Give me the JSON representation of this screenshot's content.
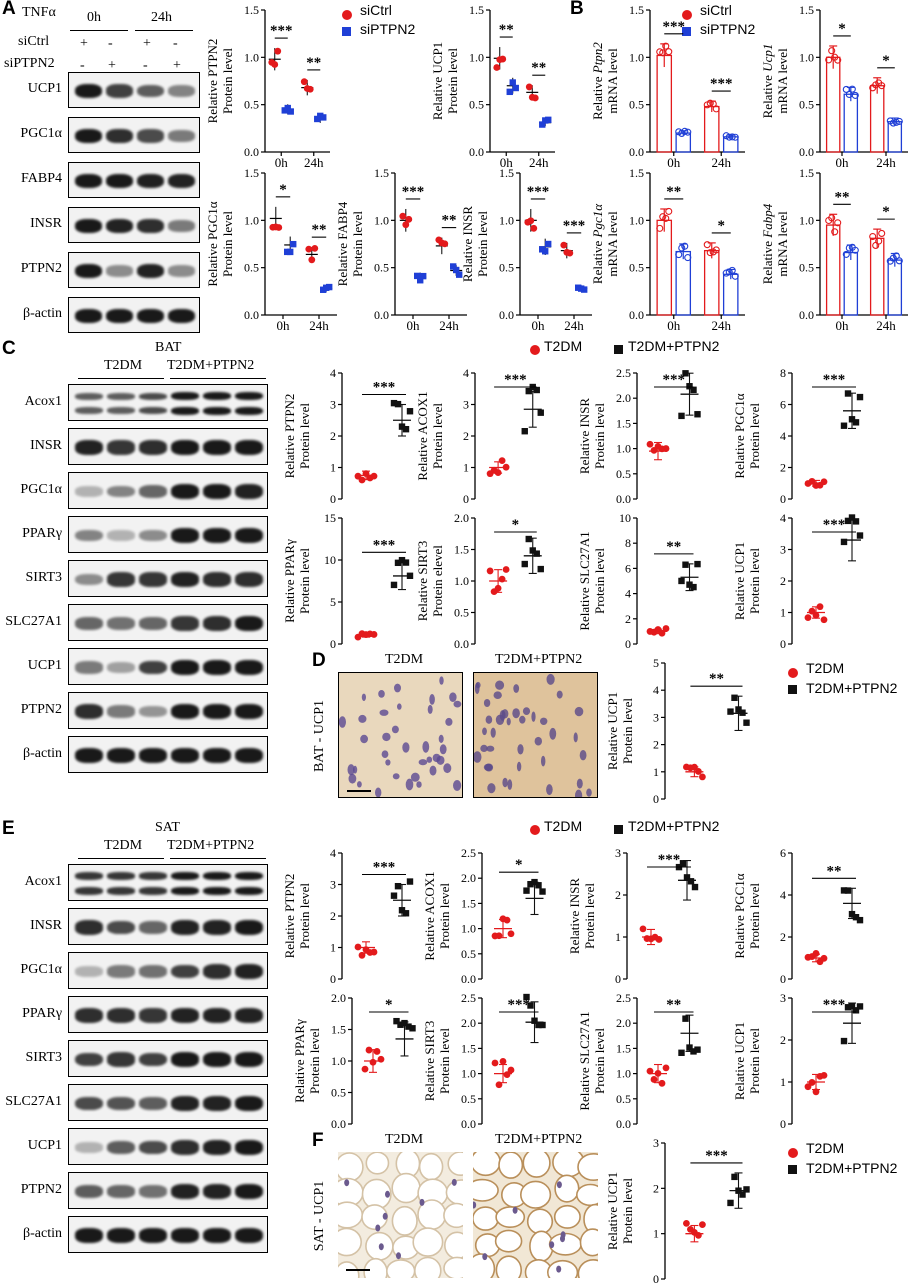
{
  "panels": {
    "A": {
      "letter": "A",
      "treatment_label": "TNFα",
      "time_labels": [
        "0h",
        "24h"
      ],
      "row_labels": [
        "siCtrl",
        "siPTPN2"
      ],
      "signs": {
        "siCtrl": [
          "+",
          "-",
          "+",
          "-"
        ],
        "siPTPN2": [
          "-",
          "+",
          "-",
          "+"
        ]
      },
      "blots": [
        "UCP1",
        "PGC1α",
        "FABP4",
        "INSR",
        "PTPN2",
        "β-actin"
      ],
      "legend": {
        "ctrl": "siCtrl",
        "treat": "siPTPN2"
      }
    },
    "B": {
      "letter": "B",
      "legend": {
        "ctrl": "siCtrl",
        "treat": "siPTPN2"
      }
    },
    "C": {
      "letter": "C",
      "tissue": "BAT",
      "groups": [
        "T2DM",
        "T2DM+PTPN2"
      ],
      "blots": [
        "Acox1",
        "INSR",
        "PGC1α",
        "PPARγ",
        "SIRT3",
        "SLC27A1",
        "UCP1",
        "PTPN2",
        "β-actin"
      ],
      "legend": {
        "ctrl": "T2DM",
        "treat": "T2DM+PTPN2"
      }
    },
    "D": {
      "letter": "D",
      "ylabel": "BAT - UCP1",
      "image_titles": [
        "T2DM",
        "T2DM+PTPN2"
      ],
      "legend": {
        "ctrl": "T2DM",
        "treat": "T2DM+PTPN2"
      }
    },
    "E": {
      "letter": "E",
      "tissue": "SAT",
      "groups": [
        "T2DM",
        "T2DM+PTPN2"
      ],
      "blots": [
        "Acox1",
        "INSR",
        "PGC1α",
        "PPARγ",
        "SIRT3",
        "SLC27A1",
        "UCP1",
        "PTPN2",
        "β-actin"
      ],
      "legend": {
        "ctrl": "T2DM",
        "treat": "T2DM+PTPN2"
      }
    },
    "F": {
      "letter": "F",
      "ylabel": "SAT - UCP1",
      "image_titles": [
        "T2DM",
        "T2DM+PTPN2"
      ],
      "legend": {
        "ctrl": "T2DM",
        "treat": "T2DM+PTPN2"
      }
    }
  },
  "colors": {
    "ctrl": "#e31a1c",
    "treat": "#1f3fd6",
    "black": "#111111"
  },
  "chart_data": [
    {
      "id": "A1",
      "type": "scatter",
      "ylabel": [
        "Relative PTPN2",
        "Protein level"
      ],
      "categories": [
        "0h",
        "24h"
      ],
      "ylim": [
        0,
        1.5
      ],
      "yticks": [
        0,
        0.5,
        1.0,
        1.5
      ],
      "tick_format": "1dp",
      "sig": [
        "***",
        "**"
      ],
      "series": [
        {
          "name": "siCtrl",
          "mean": [
            0.98,
            0.68
          ]
        },
        {
          "name": "siPTPN2",
          "mean": [
            0.45,
            0.35
          ]
        }
      ]
    },
    {
      "id": "A2",
      "type": "scatter",
      "ylabel": [
        "Relative UCP1",
        "Protein level"
      ],
      "categories": [
        "0h",
        "24h"
      ],
      "ylim": [
        0,
        1.5
      ],
      "yticks": [
        0,
        0.5,
        1.0,
        1.5
      ],
      "tick_format": "1dp",
      "sig": [
        "**",
        "**"
      ],
      "series": [
        {
          "name": "siCtrl",
          "mean": [
            0.99,
            0.63
          ]
        },
        {
          "name": "siPTPN2",
          "mean": [
            0.7,
            0.31
          ]
        }
      ]
    },
    {
      "id": "B1",
      "type": "bar",
      "ylabel": [
        "Relative Ptpn2",
        "mRNA level"
      ],
      "italic": "Ptpn2",
      "categories": [
        "0h",
        "24h"
      ],
      "ylim": [
        0,
        1.5
      ],
      "yticks": [
        0,
        0.5,
        1.0,
        1.5
      ],
      "tick_format": "1dp",
      "sig": [
        "***",
        "***"
      ],
      "series": [
        {
          "name": "siCtrl",
          "mean": [
            1.02,
            0.48
          ]
        },
        {
          "name": "siPTPN2",
          "mean": [
            0.2,
            0.16
          ]
        }
      ]
    },
    {
      "id": "B2",
      "type": "bar",
      "ylabel": [
        "Relative Ucp1",
        "mRNA level"
      ],
      "italic": "Ucp1",
      "categories": [
        "0h",
        "24h"
      ],
      "ylim": [
        0,
        1.5
      ],
      "yticks": [
        0,
        0.5,
        1.0,
        1.5
      ],
      "tick_format": "1dp",
      "sig": [
        "*",
        "*"
      ],
      "series": [
        {
          "name": "siCtrl",
          "mean": [
            1.0,
            0.7
          ]
        },
        {
          "name": "siPTPN2",
          "mean": [
            0.61,
            0.32
          ]
        }
      ]
    },
    {
      "id": "A3",
      "type": "scatter",
      "ylabel": [
        "Relative PGC1α",
        "Protein level"
      ],
      "categories": [
        "0h",
        "24h"
      ],
      "ylim": [
        0,
        1.5
      ],
      "yticks": [
        0,
        0.5,
        1.0,
        1.5
      ],
      "tick_format": "1dp",
      "sig": [
        "*",
        "**"
      ],
      "series": [
        {
          "name": "siCtrl",
          "mean": [
            1.02,
            0.64
          ]
        },
        {
          "name": "siPTPN2",
          "mean": [
            0.74,
            0.28
          ]
        }
      ]
    },
    {
      "id": "A4",
      "type": "scatter",
      "ylabel": [
        "Relative FABP4",
        "Protein level"
      ],
      "categories": [
        "0h",
        "24h"
      ],
      "ylim": [
        0,
        1.5
      ],
      "yticks": [
        0,
        0.5,
        1.0,
        1.5
      ],
      "tick_format": "1dp",
      "sig": [
        "***",
        "**"
      ],
      "series": [
        {
          "name": "siCtrl",
          "mean": [
            1.0,
            0.73
          ]
        },
        {
          "name": "siPTPN2",
          "mean": [
            0.4,
            0.47
          ]
        }
      ]
    },
    {
      "id": "A5",
      "type": "scatter",
      "ylabel": [
        "Relative INSR",
        "Protein level"
      ],
      "categories": [
        "0h",
        "24h"
      ],
      "ylim": [
        0,
        1.5
      ],
      "yticks": [
        0,
        0.5,
        1.0,
        1.5
      ],
      "tick_format": "1dp",
      "sig": [
        "***",
        "***"
      ],
      "series": [
        {
          "name": "siCtrl",
          "mean": [
            1.0,
            0.68
          ]
        },
        {
          "name": "siPTPN2",
          "mean": [
            0.72,
            0.28
          ]
        }
      ]
    },
    {
      "id": "B3",
      "type": "bar",
      "ylabel": [
        "Relative Pgc1α",
        "mRNA level"
      ],
      "italic": "Pgc1α",
      "categories": [
        "0h",
        "24h"
      ],
      "ylim": [
        0,
        1.5
      ],
      "yticks": [
        0,
        0.5,
        1.0,
        1.5
      ],
      "tick_format": "1dp",
      "sig": [
        "**",
        "*"
      ],
      "series": [
        {
          "name": "siCtrl",
          "mean": [
            1.0,
            0.68
          ]
        },
        {
          "name": "siPTPN2",
          "mean": [
            0.67,
            0.43
          ]
        }
      ]
    },
    {
      "id": "B4",
      "type": "bar",
      "ylabel": [
        "Relative Fabp4",
        "mRNA level"
      ],
      "italic": "Fabp4",
      "categories": [
        "0h",
        "24h"
      ],
      "ylim": [
        0,
        1.5
      ],
      "yticks": [
        0,
        0.5,
        1.0,
        1.5
      ],
      "tick_format": "1dp",
      "sig": [
        "**",
        "*"
      ],
      "series": [
        {
          "name": "siCtrl",
          "mean": [
            0.95,
            0.81
          ]
        },
        {
          "name": "siPTPN2",
          "mean": [
            0.66,
            0.58
          ]
        }
      ]
    },
    {
      "id": "C1",
      "type": "scatter",
      "ylabel": [
        "Relative PTPN2",
        "Protein level"
      ],
      "ylim": [
        0,
        4
      ],
      "yticks": [
        0,
        1,
        2,
        3,
        4
      ],
      "tick_format": "int",
      "sig": [
        "***"
      ],
      "series": [
        {
          "name": "T2DM",
          "mean": [
            0.75
          ]
        },
        {
          "name": "T2DM+PTPN2",
          "mean": [
            2.5
          ]
        }
      ]
    },
    {
      "id": "C2",
      "type": "scatter",
      "ylabel": [
        "Relative ACOX1",
        "Protein level"
      ],
      "ylim": [
        0,
        4
      ],
      "yticks": [
        0,
        1,
        2,
        3,
        4
      ],
      "tick_format": "int",
      "sig": [
        "***"
      ],
      "series": [
        {
          "name": "T2DM",
          "mean": [
            1.0
          ]
        },
        {
          "name": "T2DM+PTPN2",
          "mean": [
            2.85
          ]
        }
      ]
    },
    {
      "id": "C3",
      "type": "scatter",
      "ylabel": [
        "Relative INSR",
        "Protein level"
      ],
      "ylim": [
        0,
        2.5
      ],
      "yticks": [
        0,
        0.5,
        1.0,
        1.5,
        2.0,
        2.5
      ],
      "tick_format": "1dp",
      "sig": [
        "***"
      ],
      "series": [
        {
          "name": "T2DM",
          "mean": [
            0.95
          ]
        },
        {
          "name": "T2DM+PTPN2",
          "mean": [
            2.08
          ]
        }
      ]
    },
    {
      "id": "C4",
      "type": "scatter",
      "ylabel": [
        "Relative PGC1α",
        "Protein level"
      ],
      "ylim": [
        0,
        8
      ],
      "yticks": [
        0,
        2,
        4,
        6,
        8
      ],
      "tick_format": "int",
      "sig": [
        "***"
      ],
      "series": [
        {
          "name": "T2DM",
          "mean": [
            1.0
          ]
        },
        {
          "name": "T2DM+PTPN2",
          "mean": [
            5.6
          ]
        }
      ]
    },
    {
      "id": "C5",
      "type": "scatter",
      "ylabel": [
        "Relative PPARγ",
        "Protein level"
      ],
      "ylim": [
        0,
        15
      ],
      "yticks": [
        0,
        5,
        10,
        15
      ],
      "tick_format": "int",
      "sig": [
        "***"
      ],
      "series": [
        {
          "name": "T2DM",
          "mean": [
            1.0
          ]
        },
        {
          "name": "T2DM+PTPN2",
          "mean": [
            8.1
          ]
        }
      ]
    },
    {
      "id": "C6",
      "type": "scatter",
      "ylabel": [
        "Relative SIRT3",
        "Protein elevel"
      ],
      "ylim": [
        0,
        2.0
      ],
      "yticks": [
        0,
        0.5,
        1.0,
        1.5,
        2.0
      ],
      "tick_format": "1dp",
      "sig": [
        "*"
      ],
      "series": [
        {
          "name": "T2DM",
          "mean": [
            1.0
          ]
        },
        {
          "name": "T2DM+PTPN2",
          "mean": [
            1.4
          ]
        }
      ]
    },
    {
      "id": "C7",
      "type": "scatter",
      "ylabel": [
        "Relative SLC27A1",
        "Protein level"
      ],
      "ylim": [
        0,
        10
      ],
      "yticks": [
        0,
        2,
        4,
        6,
        8,
        10
      ],
      "tick_format": "int",
      "sig": [
        "**"
      ],
      "series": [
        {
          "name": "T2DM",
          "mean": [
            1.0
          ]
        },
        {
          "name": "T2DM+PTPN2",
          "mean": [
            5.3
          ]
        }
      ]
    },
    {
      "id": "C8",
      "type": "scatter",
      "ylabel": [
        "Relative UCP1",
        "Protein level"
      ],
      "ylim": [
        0,
        4
      ],
      "yticks": [
        0,
        1,
        2,
        3,
        4
      ],
      "tick_format": "int",
      "sig": [
        "***"
      ],
      "series": [
        {
          "name": "T2DM",
          "mean": [
            1.0
          ]
        },
        {
          "name": "T2DM+PTPN2",
          "mean": [
            3.3
          ]
        }
      ]
    },
    {
      "id": "D1",
      "type": "scatter",
      "ylabel": [
        "Relative UCP1",
        "Protein level"
      ],
      "ylim": [
        0,
        5
      ],
      "yticks": [
        0,
        1,
        2,
        3,
        4,
        5
      ],
      "tick_format": "int",
      "sig": [
        "**"
      ],
      "series": [
        {
          "name": "T2DM",
          "mean": [
            1.0
          ]
        },
        {
          "name": "T2DM+PTPN2",
          "mean": [
            3.15
          ]
        }
      ]
    },
    {
      "id": "E1",
      "type": "scatter",
      "ylabel": [
        "Relative PTPN2",
        "Protein level"
      ],
      "ylim": [
        0,
        4
      ],
      "yticks": [
        0,
        1,
        2,
        3,
        4
      ],
      "tick_format": "int",
      "sig": [
        "***"
      ],
      "series": [
        {
          "name": "T2DM",
          "mean": [
            1.0
          ]
        },
        {
          "name": "T2DM+PTPN2",
          "mean": [
            2.5
          ]
        }
      ]
    },
    {
      "id": "E2",
      "type": "scatter",
      "ylabel": [
        "Relative ACOX1",
        "Protein level"
      ],
      "ylim": [
        0,
        2.5
      ],
      "yticks": [
        0,
        0.5,
        1.0,
        1.5,
        2.0,
        2.5
      ],
      "tick_format": "1dp",
      "sig": [
        "*"
      ],
      "series": [
        {
          "name": "T2DM",
          "mean": [
            1.0
          ]
        },
        {
          "name": "T2DM+PTPN2",
          "mean": [
            1.6
          ]
        }
      ]
    },
    {
      "id": "E3",
      "type": "scatter",
      "ylabel": [
        "Relative INSR",
        "Protein level"
      ],
      "ylim": [
        0,
        3
      ],
      "yticks": [
        0,
        1,
        2,
        3
      ],
      "tick_format": "int",
      "sig": [
        "***"
      ],
      "series": [
        {
          "name": "T2DM",
          "mean": [
            1.0
          ]
        },
        {
          "name": "T2DM+PTPN2",
          "mean": [
            2.35
          ]
        }
      ]
    },
    {
      "id": "E4",
      "type": "scatter",
      "ylabel": [
        "Relative  PGC1α",
        "Protein level"
      ],
      "ylim": [
        0,
        6
      ],
      "yticks": [
        0,
        2,
        4,
        6
      ],
      "tick_format": "int",
      "sig": [
        "**"
      ],
      "series": [
        {
          "name": "T2DM",
          "mean": [
            1.0
          ]
        },
        {
          "name": "T2DM+PTPN2",
          "mean": [
            3.6
          ]
        }
      ]
    },
    {
      "id": "E5",
      "type": "scatter",
      "ylabel": [
        "Relative PPARγ",
        "Protein level"
      ],
      "ylim": [
        0,
        2.0
      ],
      "yticks": [
        0,
        0.5,
        1.0,
        1.5,
        2.0
      ],
      "tick_format": "1dp",
      "sig": [
        "*"
      ],
      "series": [
        {
          "name": "T2DM",
          "mean": [
            1.0
          ]
        },
        {
          "name": "T2DM+PTPN2",
          "mean": [
            1.35
          ]
        }
      ]
    },
    {
      "id": "E6",
      "type": "scatter",
      "ylabel": [
        "Relative SIRT3",
        "Protein level"
      ],
      "ylim": [
        0,
        2.5
      ],
      "yticks": [
        0,
        0.5,
        1.0,
        1.5,
        2.0,
        2.5
      ],
      "tick_format": "1dp",
      "sig": [
        "***"
      ],
      "series": [
        {
          "name": "T2DM",
          "mean": [
            1.0
          ]
        },
        {
          "name": "T2DM+PTPN2",
          "mean": [
            2.02
          ]
        }
      ]
    },
    {
      "id": "E7",
      "type": "scatter",
      "ylabel": [
        "Relative SLC27A1",
        "Protein level"
      ],
      "ylim": [
        0,
        2.5
      ],
      "yticks": [
        0,
        0.5,
        1.0,
        1.5,
        2.0,
        2.5
      ],
      "tick_format": "1dp",
      "sig": [
        "**"
      ],
      "series": [
        {
          "name": "T2DM",
          "mean": [
            1.0
          ]
        },
        {
          "name": "T2DM+PTPN2",
          "mean": [
            1.8
          ]
        }
      ]
    },
    {
      "id": "E8",
      "type": "scatter",
      "ylabel": [
        "Relative UCP1",
        "Protein level"
      ],
      "ylim": [
        0,
        3
      ],
      "yticks": [
        0,
        1,
        2,
        3
      ],
      "tick_format": "int",
      "sig": [
        "***"
      ],
      "series": [
        {
          "name": "T2DM",
          "mean": [
            1.0
          ]
        },
        {
          "name": "T2DM+PTPN2",
          "mean": [
            2.4
          ]
        }
      ]
    },
    {
      "id": "F1",
      "type": "scatter",
      "ylabel": [
        "Relative UCP1",
        "Protein level"
      ],
      "ylim": [
        0,
        3
      ],
      "yticks": [
        0,
        1,
        2,
        3
      ],
      "tick_format": "int",
      "sig": [
        "***"
      ],
      "series": [
        {
          "name": "T2DM",
          "mean": [
            1.0
          ]
        },
        {
          "name": "T2DM+PTPN2",
          "mean": [
            1.95
          ]
        }
      ]
    }
  ]
}
